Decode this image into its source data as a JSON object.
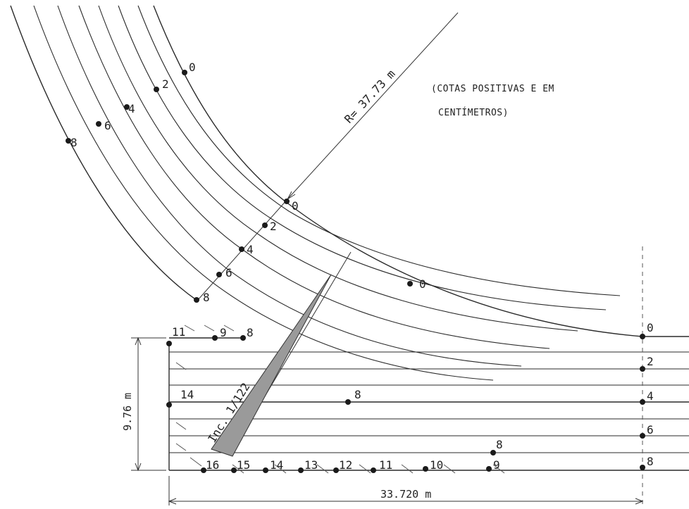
{
  "radius_label": "R= 37.73 m",
  "note_line1": "(COTAS POSITIVAS E EM",
  "note_line2": "CENTÍMETROS)",
  "incline_label": "Inc. 1/122",
  "dim_height": "9.76 m",
  "dim_width": "33.720 m",
  "point_labels": {
    "arc_top": [
      "0",
      "2",
      "4",
      "6",
      "8"
    ],
    "arc_mid": [
      "0",
      "2",
      "4",
      "6",
      "8"
    ],
    "arc_outer_zero": "0",
    "right_edge": [
      "0",
      "2",
      "4",
      "6",
      "8"
    ],
    "top_row": [
      "11",
      "9",
      "8"
    ],
    "left_mid": "14",
    "center_eight": "8",
    "lower_eight": "8",
    "bottom_row": [
      "16",
      "15",
      "14",
      "13",
      "12",
      "11",
      "10",
      "9"
    ]
  }
}
